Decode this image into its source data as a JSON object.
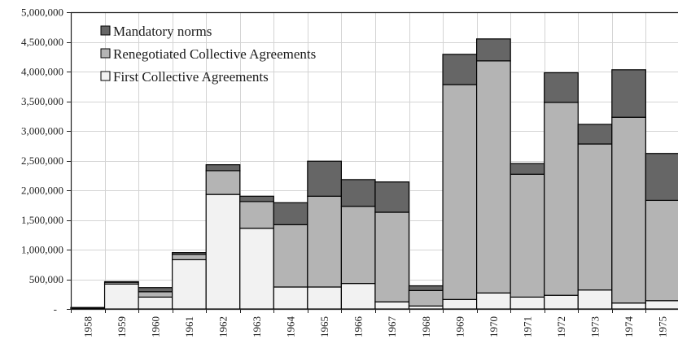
{
  "chart_data": {
    "type": "bar",
    "stacked": true,
    "categories": [
      "1958",
      "1959",
      "1960",
      "1961",
      "1962",
      "1963",
      "1964",
      "1965",
      "1966",
      "1967",
      "1968",
      "1969",
      "1970",
      "1971",
      "1972",
      "1973",
      "1974",
      "1975"
    ],
    "series": [
      {
        "name": "First Collective Agreements",
        "color": "#f2f2f2",
        "values": [
          10000,
          420000,
          200000,
          830000,
          1930000,
          1360000,
          370000,
          370000,
          430000,
          120000,
          50000,
          160000,
          270000,
          200000,
          230000,
          320000,
          100000,
          140000
        ]
      },
      {
        "name": "Renegotiated Collective Agreements",
        "color": "#b4b4b4",
        "values": [
          10000,
          30000,
          90000,
          90000,
          400000,
          450000,
          1050000,
          1530000,
          1300000,
          1510000,
          260000,
          3620000,
          3910000,
          2070000,
          3250000,
          2460000,
          3130000,
          1690000
        ]
      },
      {
        "name": "Mandatory norms",
        "color": "#666666",
        "values": [
          5000,
          10000,
          70000,
          30000,
          100000,
          90000,
          370000,
          590000,
          450000,
          510000,
          80000,
          510000,
          370000,
          180000,
          500000,
          330000,
          800000,
          790000
        ]
      }
    ],
    "ylim": [
      0,
      5000000
    ],
    "yticks": [
      0,
      500000,
      1000000,
      1500000,
      2000000,
      2500000,
      3000000,
      3500000,
      4000000,
      4500000,
      5000000
    ],
    "ytick_labels": [
      "-",
      "500,000",
      "1,000,000",
      "1,500,000",
      "2,000,000",
      "2,500,000",
      "3,000,000",
      "3,500,000",
      "4,000,000",
      "4,500,000",
      "5,000,000"
    ],
    "legend": {
      "position": "top-left",
      "entries": [
        "Mandatory norms",
        "Renegotiated Collective Agreements",
        "First Collective Agreements"
      ]
    },
    "grid": true,
    "title": "",
    "xlabel": "",
    "ylabel": ""
  }
}
